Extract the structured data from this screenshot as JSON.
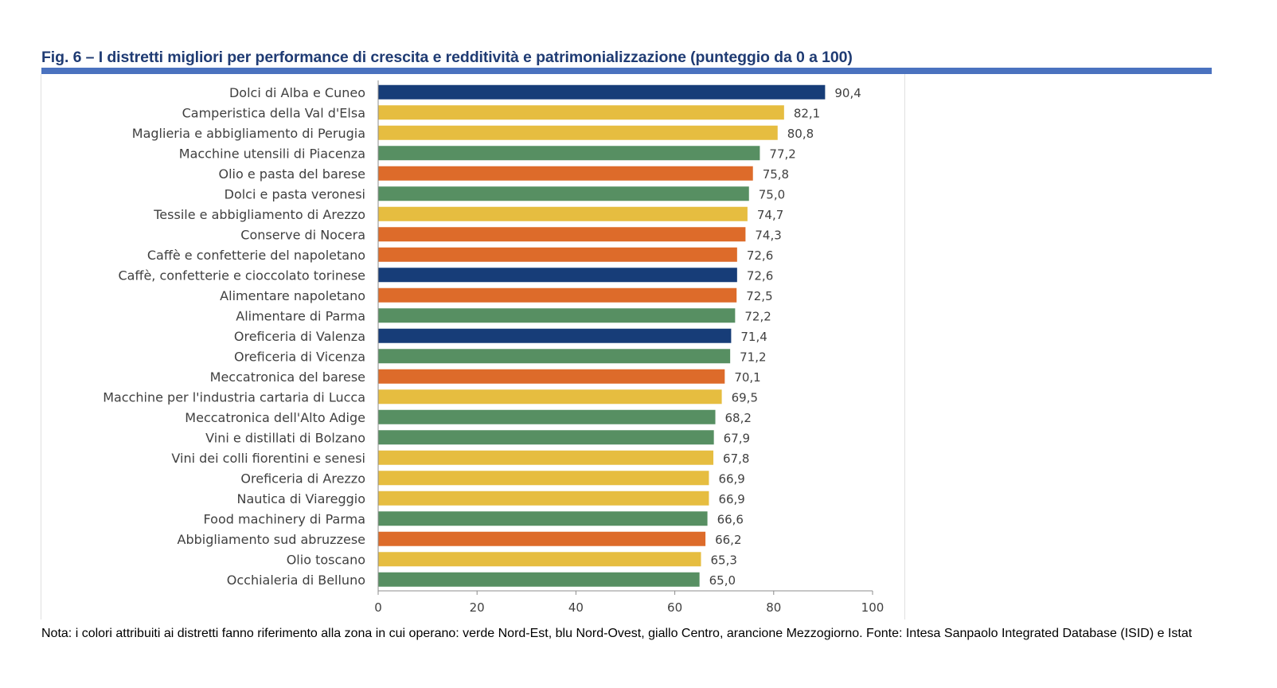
{
  "title": "Fig. 6 – I distretti migliori per performance di crescita e redditività e patrimonializzazione (punteggio da 0 a 100)",
  "note": "Nota: i colori attribuiti ai distretti fanno riferimento alla zona in cui operano: verde Nord-Est, blu Nord-Ovest, giallo Centro, arancione Mezzogiorno. Fonte: Intesa Sanpaolo Integrated Database (ISID) e Istat",
  "colors": {
    "Nord-Est": "#578f62",
    "Nord-Ovest": "#173d78",
    "Centro": "#e6bd40",
    "Mezzogiorno": "#dd6b2a",
    "title": "#1f3b73",
    "title_rule": "#4a72bf"
  },
  "chart_data": {
    "type": "bar",
    "orientation": "horizontal",
    "title": "Fig. 6 – I distretti migliori per performance di crescita e redditività e patrimonializzazione (punteggio da 0 a 100)",
    "xlabel": "",
    "ylabel": "",
    "xlim": [
      0,
      100
    ],
    "x_ticks": [
      0,
      20,
      40,
      60,
      80,
      100
    ],
    "x_tick_labels": [
      "0",
      "20",
      "40",
      "60",
      "80",
      "100"
    ],
    "grid": false,
    "categories": [
      "Dolci di Alba e Cuneo",
      "Camperistica della Val d'Elsa",
      "Maglieria e abbigliamento di Perugia",
      "Macchine utensili di Piacenza",
      "Olio e pasta del barese",
      "Dolci e pasta veronesi",
      "Tessile e abbigliamento di Arezzo",
      "Conserve di Nocera",
      "Caffè e confetterie del napoletano",
      "Caffè, confetterie e cioccolato torinese",
      "Alimentare napoletano",
      "Alimentare di Parma",
      "Oreficeria di Valenza",
      "Oreficeria di Vicenza",
      "Meccatronica del barese",
      "Macchine per l'industria cartaria di Lucca",
      "Meccatronica dell'Alto Adige",
      "Vini e distillati di Bolzano",
      "Vini dei colli fiorentini e senesi",
      "Oreficeria di Arezzo",
      "Nautica di Viareggio",
      "Food machinery di Parma",
      "Abbigliamento sud abruzzese",
      "Olio toscano",
      "Occhialeria di Belluno"
    ],
    "values": [
      90.4,
      82.1,
      80.8,
      77.2,
      75.8,
      75.0,
      74.7,
      74.3,
      72.6,
      72.6,
      72.5,
      72.2,
      71.4,
      71.2,
      70.1,
      69.5,
      68.2,
      67.9,
      67.8,
      66.9,
      66.9,
      66.6,
      66.2,
      65.3,
      65.0
    ],
    "value_labels": [
      "90,4",
      "82,1",
      "80,8",
      "77,2",
      "75,8",
      "75,0",
      "74,7",
      "74,3",
      "72,6",
      "72,6",
      "72,5",
      "72,2",
      "71,4",
      "71,2",
      "70,1",
      "69,5",
      "68,2",
      "67,9",
      "67,8",
      "66,9",
      "66,9",
      "66,6",
      "66,2",
      "65,3",
      "65,0"
    ],
    "zones": [
      "Nord-Ovest",
      "Centro",
      "Centro",
      "Nord-Est",
      "Mezzogiorno",
      "Nord-Est",
      "Centro",
      "Mezzogiorno",
      "Mezzogiorno",
      "Nord-Ovest",
      "Mezzogiorno",
      "Nord-Est",
      "Nord-Ovest",
      "Nord-Est",
      "Mezzogiorno",
      "Centro",
      "Nord-Est",
      "Nord-Est",
      "Centro",
      "Centro",
      "Centro",
      "Nord-Est",
      "Mezzogiorno",
      "Centro",
      "Nord-Est"
    ]
  }
}
